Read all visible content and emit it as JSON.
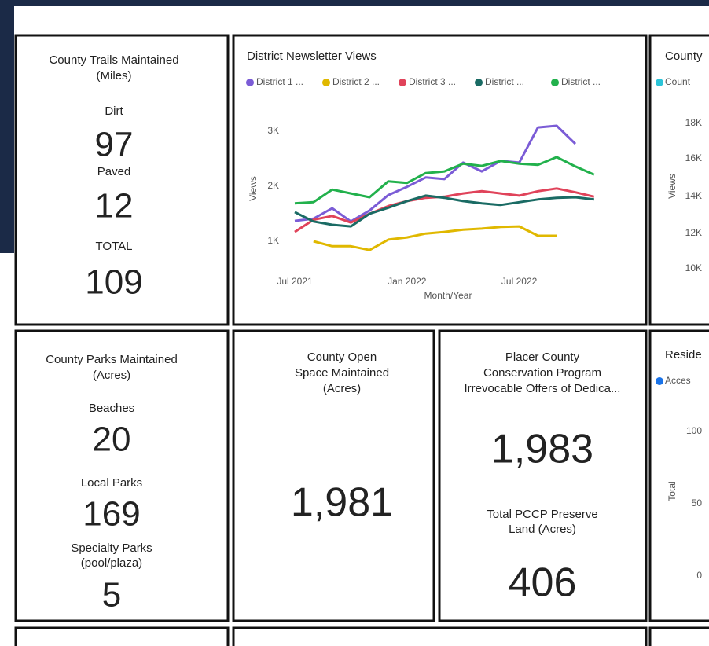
{
  "cards": [
    {
      "title_lines": [
        "County Trails Maintained",
        "(Miles)"
      ],
      "items": [
        {
          "label_lines": [
            "Dirt"
          ],
          "value": "97"
        },
        {
          "label_lines": [
            "Paved"
          ],
          "value": "12"
        },
        {
          "label_lines": [
            "TOTAL"
          ],
          "value": "109"
        }
      ]
    },
    {
      "title_lines": [
        "County Parks Maintained",
        "(Acres)"
      ],
      "items": [
        {
          "label_lines": [
            "Beaches"
          ],
          "value": "20"
        },
        {
          "label_lines": [
            "Local Parks"
          ],
          "value": "169"
        },
        {
          "label_lines": [
            "Specialty Parks",
            "(pool/plaza)"
          ],
          "value": "5"
        }
      ]
    },
    {
      "title_lines": [
        "County Open",
        "Space Maintained",
        "(Acres)"
      ],
      "items": [
        {
          "value": "1,981"
        }
      ]
    },
    {
      "title_lines": [
        "Placer County",
        "Conservation Program",
        "Irrevocable Offers of Dedica..."
      ],
      "items": [
        {
          "value": "1,983"
        },
        {
          "label_lines": [
            "Total PCCP Preserve",
            "Land (Acres)"
          ],
          "value": "406"
        }
      ]
    }
  ],
  "chart_data": {
    "type": "line",
    "title": "District Newsletter Views",
    "x_label": "Month/Year",
    "y_label": "Views",
    "categories": [
      "Jul 2021",
      null,
      null,
      null,
      null,
      null,
      "Jan 2022",
      null,
      null,
      null,
      null,
      null,
      "Jul 2022",
      null,
      null,
      null,
      null
    ],
    "ylim": [
      700,
      3200
    ],
    "yticks": [
      {
        "value": 1000,
        "label": "1K"
      },
      {
        "value": 2000,
        "label": "2K"
      },
      {
        "value": 3000,
        "label": "3K"
      }
    ],
    "series": [
      {
        "name": "District 1 ...",
        "color": "#7b5cd6",
        "values": [
          1370,
          1410,
          1600,
          1360,
          1560,
          1840,
          1990,
          2160,
          2130,
          2430,
          2270,
          2460,
          2430,
          3070,
          3100,
          2770,
          null
        ]
      },
      {
        "name": "District 2 ...",
        "color": "#e0b800",
        "values": [
          null,
          1000,
          910,
          910,
          840,
          1030,
          1070,
          1140,
          1170,
          1210,
          1230,
          1260,
          1270,
          1100,
          1100,
          null,
          null
        ]
      },
      {
        "name": "District 3 ...",
        "color": "#e0435a",
        "values": [
          1170,
          1390,
          1460,
          1340,
          1500,
          1640,
          1730,
          1790,
          1810,
          1870,
          1910,
          1870,
          1830,
          1910,
          1960,
          1890,
          1810
        ]
      },
      {
        "name": "District ...",
        "color": "#1a6b64",
        "values": [
          1530,
          1360,
          1300,
          1270,
          1500,
          1610,
          1730,
          1830,
          1790,
          1730,
          1690,
          1660,
          1710,
          1760,
          1790,
          1800,
          1760
        ]
      },
      {
        "name": "District ...",
        "color": "#22b14c",
        "values": [
          1690,
          1710,
          1940,
          1870,
          1800,
          2090,
          2060,
          2240,
          2270,
          2410,
          2370,
          2460,
          2410,
          2390,
          2530,
          2360,
          2210
        ]
      }
    ]
  },
  "partial_charts": [
    {
      "title": "County",
      "legend": "Count",
      "legend_color": "#2bc4d8",
      "y_label": "Views",
      "tick_labels": [
        "18K",
        "16K",
        "14K",
        "12K",
        "10K"
      ]
    },
    {
      "title": "Reside",
      "legend": "Acces",
      "legend_color": "#1a73e8",
      "y_label": "Total",
      "tick_labels": [
        "100",
        "50",
        "0"
      ]
    }
  ]
}
